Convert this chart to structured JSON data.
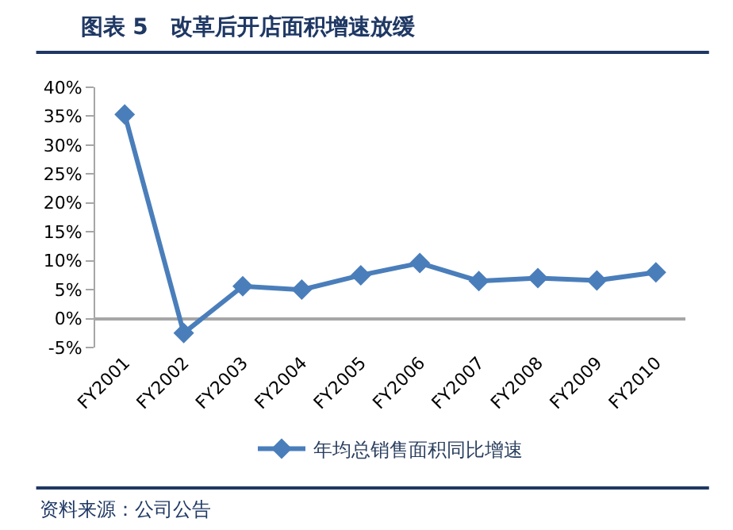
{
  "chart_data": {
    "type": "line",
    "title": "图表 5　改革后开店面积增速放缓",
    "categories": [
      "FY2001",
      "FY2002",
      "FY2003",
      "FY2004",
      "FY2005",
      "FY2006",
      "FY2007",
      "FY2008",
      "FY2009",
      "FY2010"
    ],
    "series": [
      {
        "name": "年均总销售面积同比增速",
        "color": "#4a7ebb",
        "values": [
          35.3,
          -2.5,
          5.6,
          5.0,
          7.5,
          9.6,
          6.5,
          7.0,
          6.6,
          8.0
        ]
      }
    ],
    "ylim": [
      -5,
      40
    ],
    "yticks": [
      {
        "value": -5,
        "label": "-5%"
      },
      {
        "value": 0,
        "label": "0%"
      },
      {
        "value": 5,
        "label": "5%"
      },
      {
        "value": 10,
        "label": "10%"
      },
      {
        "value": 15,
        "label": "15%"
      },
      {
        "value": 20,
        "label": "20%"
      },
      {
        "value": 25,
        "label": "25%"
      },
      {
        "value": 30,
        "label": "30%"
      },
      {
        "value": 35,
        "label": "35%"
      },
      {
        "value": 40,
        "label": "40%"
      }
    ],
    "grid": false,
    "legend": "bottom",
    "marker": "diamond",
    "line_style": "solid",
    "annotations": [
      "资料来源：公司公告"
    ]
  }
}
